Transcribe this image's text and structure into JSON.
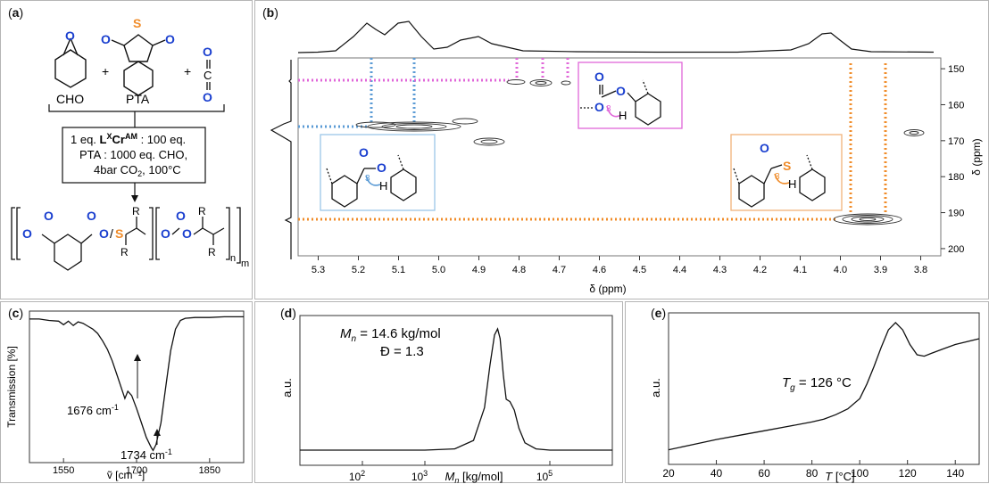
{
  "panels": {
    "a": {
      "label": "a"
    },
    "b": {
      "label": "b"
    },
    "c": {
      "label": "c"
    },
    "d": {
      "label": "d"
    },
    "e": {
      "label": "e"
    }
  },
  "scheme": {
    "cho": "CHO",
    "pta": "PTA",
    "cond1_a": "1 eq. ",
    "cond1_cat": "L",
    "cond1_sup": "X",
    "cond1_cr": "Cr",
    "cond1_am": "AM",
    "cond1_b": " : 100 eq.",
    "cond2": "PTA : 1000 eq. CHO,",
    "cond3": "4bar CO",
    "cond3_sub": "2",
    "cond3_b": ", 100°C",
    "R": "R",
    "n": "n",
    "m": "m"
  },
  "nmr": {
    "xlabel": "δ (ppm)",
    "ylabel": "δ (ppm)",
    "h_ticks": [
      "5.3",
      "5.2",
      "5.1",
      "5.0",
      "4.9",
      "4.8",
      "4.7",
      "4.6",
      "4.5",
      "4.4",
      "4.3",
      "4.2",
      "4.1",
      "4.0",
      "3.9",
      "3.8"
    ],
    "c_ticks": [
      "150",
      "160",
      "170",
      "180",
      "190",
      "200"
    ],
    "three": "3",
    "H": "H",
    "colors": {
      "blue": "#5b9bd5",
      "pink": "#e066d8",
      "orange": "#f08c2a"
    }
  },
  "chart_data": [
    {
      "id": "c",
      "type": "line",
      "xlabel": "ṽ [cm⁻¹]",
      "ylabel": "Transmission [%]",
      "xticks": [
        1550,
        1700,
        1850
      ],
      "xlim": [
        1480,
        1920
      ],
      "annotations": [
        {
          "text": "1676 cm",
          "sup": "-1",
          "x": 1676
        },
        {
          "text": "1734 cm",
          "sup": "-1",
          "x": 1734
        }
      ],
      "x": [
        1480,
        1500,
        1520,
        1540,
        1550,
        1560,
        1570,
        1580,
        1590,
        1600,
        1610,
        1620,
        1630,
        1640,
        1650,
        1660,
        1670,
        1676,
        1682,
        1690,
        1700,
        1710,
        1720,
        1730,
        1734,
        1740,
        1750,
        1760,
        1770,
        1780,
        1790,
        1800,
        1820,
        1850,
        1880,
        1920
      ],
      "y": [
        0.97,
        0.97,
        0.96,
        0.955,
        0.93,
        0.955,
        0.925,
        0.95,
        0.94,
        0.92,
        0.9,
        0.87,
        0.82,
        0.76,
        0.68,
        0.58,
        0.48,
        0.42,
        0.47,
        0.44,
        0.35,
        0.25,
        0.15,
        0.08,
        0.06,
        0.1,
        0.25,
        0.5,
        0.75,
        0.9,
        0.96,
        0.975,
        0.98,
        0.98,
        0.985,
        0.985
      ]
    },
    {
      "id": "d",
      "type": "line",
      "xlabel": "M",
      "xlabel_sub": "n",
      "xlabel_unit": " [kg/mol]",
      "ylabel": "a.u.",
      "xscale": "log",
      "xticks": [
        {
          "base": "10",
          "exp": "2",
          "value": 100
        },
        {
          "base": "10",
          "exp": "3",
          "value": 1000
        },
        {
          "base": "10",
          "exp": "5",
          "value": 100000
        }
      ],
      "xlim": [
        10,
        1000000
      ],
      "annotation_mn": "M",
      "annotation_mn_sub": "n",
      "annotation_mn_val": " = 14.6 kg/mol",
      "annotation_d": "Đ = 1.3",
      "x": [
        10,
        100,
        1000,
        3000,
        6000,
        9000,
        11000,
        13000,
        14600,
        16000,
        18000,
        20000,
        23000,
        27000,
        32000,
        40000,
        60000,
        100000,
        1000000
      ],
      "y": [
        0,
        0,
        0,
        0.01,
        0.08,
        0.35,
        0.7,
        0.95,
        1.0,
        0.92,
        0.62,
        0.42,
        0.4,
        0.33,
        0.18,
        0.06,
        0.01,
        0,
        0
      ]
    },
    {
      "id": "e",
      "type": "line",
      "xlabel": "T",
      "xlabel_unit": " [°C]",
      "ylabel": "a.u.",
      "xticks": [
        20,
        40,
        60,
        80,
        100,
        120,
        140
      ],
      "xlim": [
        20,
        150
      ],
      "annotation_t": "T",
      "annotation_sub": "g",
      "annotation_val": " = 126 °C",
      "x": [
        20,
        30,
        40,
        50,
        60,
        70,
        80,
        85,
        90,
        95,
        100,
        103,
        106,
        109,
        112,
        115,
        118,
        121,
        124,
        127,
        130,
        135,
        140,
        145,
        150
      ],
      "y": [
        0.1,
        0.135,
        0.17,
        0.2,
        0.23,
        0.26,
        0.29,
        0.31,
        0.34,
        0.38,
        0.45,
        0.55,
        0.67,
        0.8,
        0.92,
        0.97,
        0.92,
        0.82,
        0.75,
        0.74,
        0.76,
        0.79,
        0.82,
        0.84,
        0.86
      ]
    }
  ]
}
